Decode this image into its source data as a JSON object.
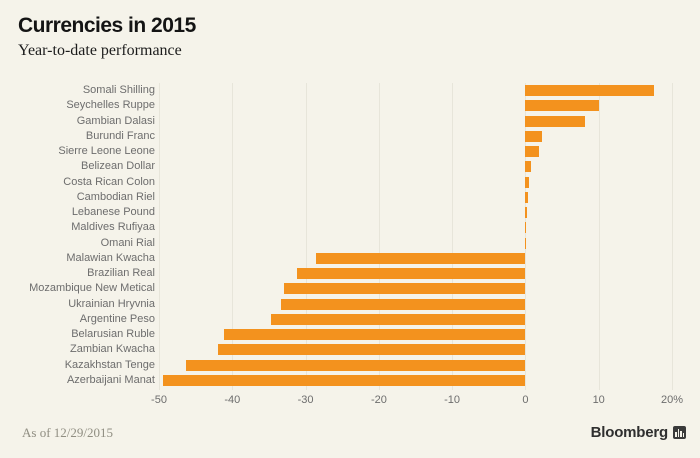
{
  "header": {
    "title": "Currencies in 2015",
    "subtitle": "Year-to-date performance"
  },
  "footer": {
    "as_of": "As of 12/29/2015",
    "brand": "Bloomberg",
    "brand_icon": "bloomberg-mark-icon"
  },
  "colors": {
    "background": "#f5f3ea",
    "bar": "#f3921e",
    "grid": "#e7e5da",
    "category_label": "#6d6d6d",
    "tick_label": "#6d6d6d",
    "title": "#141414",
    "as_of_text": "#908e82",
    "brand_text": "#2f2f2f"
  },
  "chart_data": {
    "type": "bar",
    "orientation": "horizontal",
    "title": "Currencies in 2015",
    "subtitle": "Year-to-date performance",
    "xlabel": "",
    "ylabel": "",
    "unit": "percent",
    "xlim": [
      -50,
      20
    ],
    "xticks": [
      -50,
      -40,
      -30,
      -20,
      -10,
      0,
      10,
      20
    ],
    "xtick_labels": [
      "-50",
      "-40",
      "-30",
      "-20",
      "-10",
      "0",
      "10",
      "20%"
    ],
    "grid": "vertical",
    "legend": "none",
    "categories": [
      "Somali Shilling",
      "Seychelles Ruppe",
      "Gambian Dalasi",
      "Burundi Franc",
      "Sierre Leone Leone",
      "Belizean Dollar",
      "Costa Rican Colon",
      "Cambodian Riel",
      "Lebanese Pound",
      "Maldives Rufiyaa",
      "Omani Rial",
      "Malawian Kwacha",
      "Brazilian Real",
      "Mozambique New Metical",
      "Ukrainian Hryvnia",
      "Argentine Peso",
      "Belarusian Ruble",
      "Zambian Kwacha",
      "Kazakhstan Tenge",
      "Azerbaijani Manat"
    ],
    "values": [
      17.5,
      10.0,
      8.2,
      2.3,
      1.8,
      0.8,
      0.5,
      0.4,
      0.25,
      0.15,
      0.1,
      -28.6,
      -31.2,
      -32.9,
      -33.4,
      -34.7,
      -41.1,
      -41.9,
      -46.3,
      -49.5
    ]
  }
}
